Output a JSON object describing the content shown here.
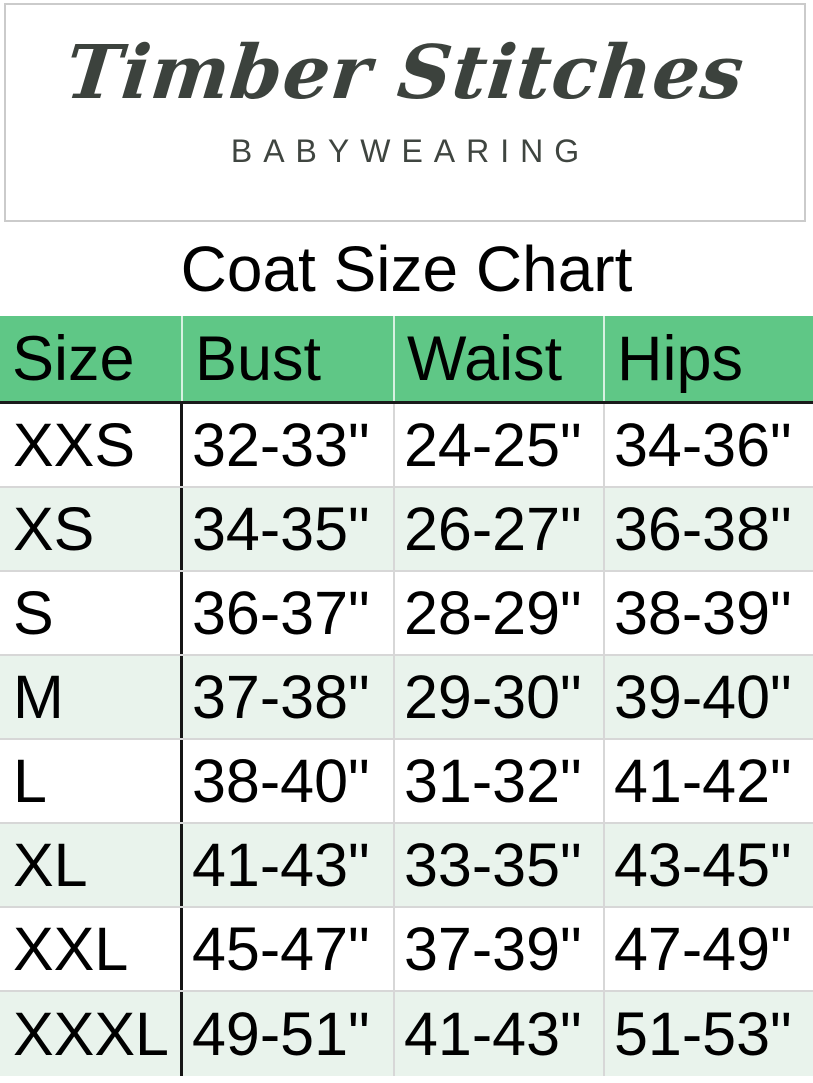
{
  "logo": {
    "brand": "Timber Stitches",
    "tagline": "BABYWEARING"
  },
  "chart_data": {
    "type": "table",
    "title": "Coat Size Chart",
    "columns": [
      "Size",
      "Bust",
      "Waist",
      "Hips"
    ],
    "rows": [
      [
        "XXS",
        "32-33\"",
        "24-25\"",
        "34-36\""
      ],
      [
        "XS",
        "34-35\"",
        "26-27\"",
        "36-38\""
      ],
      [
        "S",
        "36-37\"",
        "28-29\"",
        "38-39\""
      ],
      [
        "M",
        "37-38\"",
        "29-30\"",
        "39-40\""
      ],
      [
        "L",
        "38-40\"",
        "31-32\"",
        "41-42\""
      ],
      [
        "XL",
        "41-43\"",
        "33-35\"",
        "43-45\""
      ],
      [
        "XXL",
        "45-47\"",
        "37-39\"",
        "47-49\""
      ],
      [
        "XXXL",
        "49-51\"",
        "41-43\"",
        "51-53\""
      ]
    ],
    "layout": {
      "grid": "on",
      "alternating_row_shading": true,
      "units": "inches"
    }
  },
  "colors": {
    "header_green": "#5fc786",
    "alt_row_green": "#e9f3ec",
    "grid_line_gray": "#d7d7d7",
    "divider_black": "#161616",
    "logo_ink": "#3c423d",
    "logo_border": "#cbcbcb"
  }
}
